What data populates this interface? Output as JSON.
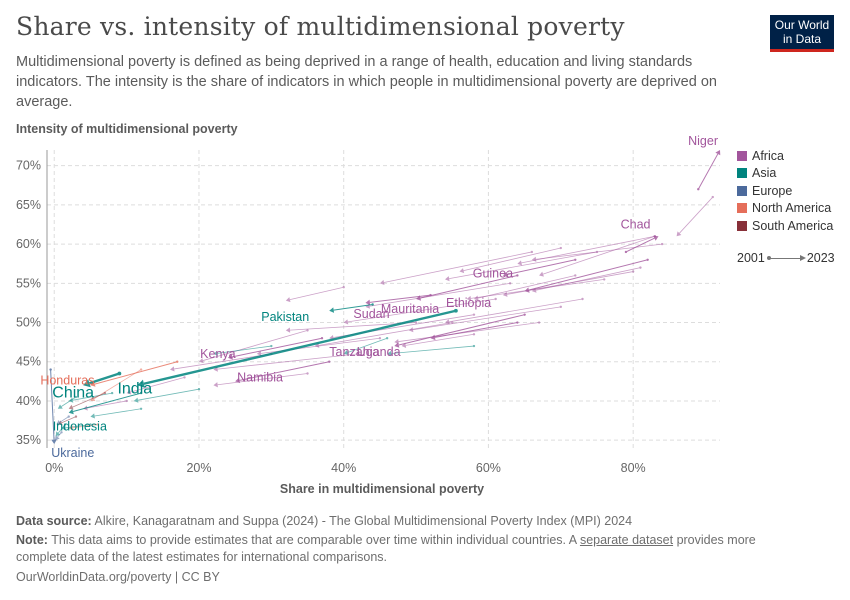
{
  "header": {
    "title": "Share vs. intensity of multidimensional poverty",
    "subtitle": "Multidimensional poverty is defined as being deprived in a range of health, education and living standards indicators. The intensity is the share of indicators in which people in multidimensional poverty are deprived on average.",
    "logo_line1": "Our World",
    "logo_line2": "in Data"
  },
  "legend": {
    "regions": [
      {
        "name": "Africa",
        "color": "#a2559c"
      },
      {
        "name": "Asia",
        "color": "#00847e"
      },
      {
        "name": "Europe",
        "color": "#4c6a9c"
      },
      {
        "name": "North America",
        "color": "#e56e5a"
      },
      {
        "name": "South America",
        "color": "#883039"
      }
    ],
    "start_year": "2001",
    "end_year": "2023"
  },
  "footer": {
    "source_label": "Data source:",
    "source_text": "Alkire, Kanagaratnam and Suppa (2024) - The Global Multidimensional Poverty Index (MPI) 2024",
    "note_label": "Note:",
    "note_text_before": "This data aims to provide estimates that are comparable over time within individual countries. A",
    "note_link": "separate dataset",
    "note_text_after": "provides more complete data of the latest estimates for international comparisons.",
    "license": "OurWorldinData.org/poverty | CC BY"
  },
  "chart_data": {
    "type": "scatter",
    "title": "Share vs. intensity of multidimensional poverty",
    "xlabel": "Share in multidimensional poverty",
    "ylabel": "Intensity of multidimensional poverty",
    "xlim": [
      -1,
      92
    ],
    "ylim": [
      34,
      72
    ],
    "x_ticks": [
      0,
      20,
      40,
      60,
      80
    ],
    "x_tick_labels": [
      "0%",
      "20%",
      "40%",
      "60%",
      "80%"
    ],
    "y_ticks": [
      35,
      40,
      45,
      50,
      55,
      60,
      65,
      70
    ],
    "y_tick_labels": [
      "35%",
      "40%",
      "45%",
      "50%",
      "55%",
      "60%",
      "65%",
      "70%"
    ],
    "grid": true,
    "legend_position": "right",
    "labeled_series": [
      {
        "name": "Niger",
        "region": "Africa",
        "x0": 89,
        "y0": 67,
        "x1": 92,
        "y1": 72,
        "highlight": false
      },
      {
        "name": "Chad",
        "region": "Africa",
        "x0": 79,
        "y0": 59,
        "x1": 83.5,
        "y1": 61,
        "highlight": false
      },
      {
        "name": "Mauritania",
        "region": "Africa",
        "x0": 64,
        "y0": 56,
        "x1": 50,
        "y1": 53,
        "highlight": false
      },
      {
        "name": "Guinea",
        "region": "Africa",
        "x0": 72,
        "y0": 58,
        "x1": 62,
        "y1": 56,
        "highlight": false
      },
      {
        "name": "Sudan",
        "region": "Africa",
        "x0": 52,
        "y0": 53.5,
        "x1": 43,
        "y1": 52.5,
        "highlight": false
      },
      {
        "name": "Ethiopia",
        "region": "Africa",
        "x0": 82,
        "y0": 58,
        "x1": 65,
        "y1": 54,
        "highlight": false
      },
      {
        "name": "Uganda",
        "region": "Africa",
        "x0": 64,
        "y0": 50,
        "x1": 52,
        "y1": 48,
        "highlight": false
      },
      {
        "name": "Pakistan",
        "region": "Asia",
        "x0": 44,
        "y0": 52.3,
        "x1": 38,
        "y1": 51.5,
        "highlight": false
      },
      {
        "name": "Tanzania",
        "region": "Africa",
        "x0": 65,
        "y0": 51,
        "x1": 47,
        "y1": 47,
        "highlight": false
      },
      {
        "name": "Kenya",
        "region": "Africa",
        "x0": 37,
        "y0": 48,
        "x1": 24,
        "y1": 45.5,
        "highlight": false
      },
      {
        "name": "Namibia",
        "region": "Africa",
        "x0": 38,
        "y0": 45,
        "x1": 25,
        "y1": 42.5,
        "highlight": false
      },
      {
        "name": "Honduras",
        "region": "North America",
        "x0": 17,
        "y0": 45,
        "x1": 5,
        "y1": 42,
        "highlight": false
      },
      {
        "name": "India",
        "region": "Asia",
        "x0": 55.5,
        "y0": 51.5,
        "x1": 11.5,
        "y1": 42,
        "highlight": true
      },
      {
        "name": "China",
        "region": "Asia",
        "x0": 9,
        "y0": 43.5,
        "x1": 4,
        "y1": 42,
        "highlight": true
      },
      {
        "name": "Indonesia",
        "region": "Asia",
        "x0": 12,
        "y0": 41,
        "x1": 2,
        "y1": 38.5,
        "highlight": false
      },
      {
        "name": "Ukraine",
        "region": "Europe",
        "x0": -0.5,
        "y0": 44,
        "x1": 0,
        "y1": 34.5,
        "highlight": false
      }
    ],
    "other_series": [
      {
        "region": "Africa",
        "x0": 91,
        "y0": 66,
        "x1": 86,
        "y1": 61
      },
      {
        "region": "Africa",
        "x0": 84,
        "y0": 60,
        "x1": 66,
        "y1": 58
      },
      {
        "region": "Africa",
        "x0": 83,
        "y0": 61,
        "x1": 64,
        "y1": 57.5
      },
      {
        "region": "Africa",
        "x0": 83,
        "y0": 61,
        "x1": 67,
        "y1": 56
      },
      {
        "region": "Africa",
        "x0": 81,
        "y0": 57,
        "x1": 66,
        "y1": 54
      },
      {
        "region": "Africa",
        "x0": 80,
        "y0": 56.5,
        "x1": 62,
        "y1": 53.5
      },
      {
        "region": "Africa",
        "x0": 75,
        "y0": 59,
        "x1": 54,
        "y1": 55.5
      },
      {
        "region": "Africa",
        "x0": 72,
        "y0": 56,
        "x1": 58,
        "y1": 53
      },
      {
        "region": "Africa",
        "x0": 70,
        "y0": 59.5,
        "x1": 56,
        "y1": 56.5
      },
      {
        "region": "Africa",
        "x0": 76,
        "y0": 55.5,
        "x1": 57,
        "y1": 53
      },
      {
        "region": "Africa",
        "x0": 73,
        "y0": 53,
        "x1": 54,
        "y1": 50
      },
      {
        "region": "Africa",
        "x0": 70,
        "y0": 52,
        "x1": 49,
        "y1": 49
      },
      {
        "region": "Africa",
        "x0": 67,
        "y0": 50,
        "x1": 47,
        "y1": 47.5
      },
      {
        "region": "Africa",
        "x0": 66,
        "y0": 59,
        "x1": 45,
        "y1": 55
      },
      {
        "region": "Africa",
        "x0": 63,
        "y0": 55,
        "x1": 43,
        "y1": 52
      },
      {
        "region": "Africa",
        "x0": 61,
        "y0": 53,
        "x1": 40,
        "y1": 50
      },
      {
        "region": "Africa",
        "x0": 58,
        "y0": 51,
        "x1": 38,
        "y1": 48
      },
      {
        "region": "Africa",
        "x0": 55,
        "y0": 50,
        "x1": 36,
        "y1": 47
      },
      {
        "region": "Africa",
        "x0": 50,
        "y0": 50,
        "x1": 32,
        "y1": 49
      },
      {
        "region": "Africa",
        "x0": 45,
        "y0": 48,
        "x1": 28,
        "y1": 46
      },
      {
        "region": "Africa",
        "x0": 42,
        "y0": 46,
        "x1": 22,
        "y1": 44
      },
      {
        "region": "Africa",
        "x0": 40,
        "y0": 54.5,
        "x1": 32,
        "y1": 52.8
      },
      {
        "region": "Africa",
        "x0": 35,
        "y0": 49,
        "x1": 20,
        "y1": 45
      },
      {
        "region": "Africa",
        "x0": 30,
        "y0": 46,
        "x1": 16,
        "y1": 44
      },
      {
        "region": "Africa",
        "x0": 35,
        "y0": 43.5,
        "x1": 22,
        "y1": 42
      },
      {
        "region": "Africa",
        "x0": 58,
        "y0": 48.5,
        "x1": 48,
        "y1": 47
      },
      {
        "region": "Africa",
        "x0": 18,
        "y0": 43,
        "x1": 10,
        "y1": 41
      },
      {
        "region": "Africa",
        "x0": 10,
        "y0": 40,
        "x1": 4,
        "y1": 39
      },
      {
        "region": "Asia",
        "x0": 46,
        "y0": 48,
        "x1": 40,
        "y1": 46
      },
      {
        "region": "Asia",
        "x0": 58,
        "y0": 47,
        "x1": 46,
        "y1": 46
      },
      {
        "region": "Asia",
        "x0": 30,
        "y0": 47,
        "x1": 22,
        "y1": 46
      },
      {
        "region": "Asia",
        "x0": 20,
        "y0": 41.5,
        "x1": 11,
        "y1": 40
      },
      {
        "region": "Asia",
        "x0": 12,
        "y0": 39,
        "x1": 5,
        "y1": 38
      },
      {
        "region": "Asia",
        "x0": 8,
        "y0": 41,
        "x1": 2,
        "y1": 40
      },
      {
        "region": "Asia",
        "x0": 5,
        "y0": 37,
        "x1": 1,
        "y1": 36.5
      },
      {
        "region": "Asia",
        "x0": 3,
        "y0": 40.5,
        "x1": 0.5,
        "y1": 39
      },
      {
        "region": "Asia",
        "x0": 1.5,
        "y0": 37,
        "x1": 0.2,
        "y1": 35.5
      },
      {
        "region": "North America",
        "x0": 12,
        "y0": 44,
        "x1": 5,
        "y1": 40
      },
      {
        "region": "North America",
        "x0": 6,
        "y0": 37,
        "x1": 2,
        "y1": 36.5
      },
      {
        "region": "South America",
        "x0": 7,
        "y0": 41,
        "x1": 2,
        "y1": 39
      },
      {
        "region": "South America",
        "x0": 3,
        "y0": 38,
        "x1": 0.5,
        "y1": 37
      },
      {
        "region": "Europe",
        "x0": 2,
        "y0": 38,
        "x1": 0.3,
        "y1": 37
      },
      {
        "region": "Europe",
        "x0": 1,
        "y0": 36,
        "x1": 0.1,
        "y1": 35
      }
    ]
  }
}
